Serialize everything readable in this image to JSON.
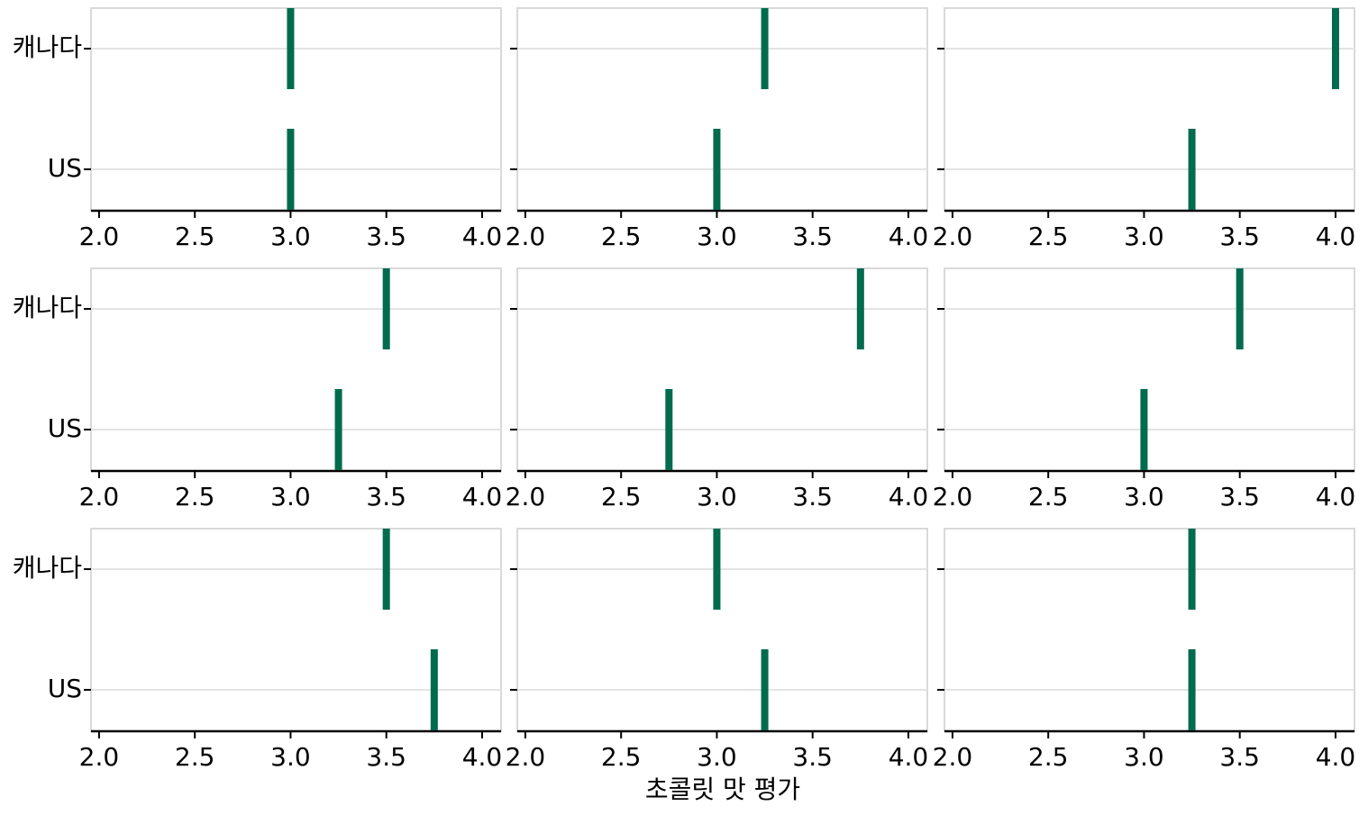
{
  "chart_data": {
    "type": "strip",
    "xlabel": "초콜릿 맛 평가",
    "categories": [
      "캐나다",
      "US"
    ],
    "color": "#006b4f",
    "xlim": [
      1.958,
      4.099
    ],
    "xticks": [
      {
        "value": 2,
        "label": "2.0"
      },
      {
        "value": 2.5,
        "label": "2.5"
      },
      {
        "value": 3,
        "label": "3.0"
      },
      {
        "value": 3.5,
        "label": "3.5"
      },
      {
        "value": 4,
        "label": "4.0"
      }
    ],
    "grid": true,
    "panels": [
      {
        "values": [
          3,
          3
        ]
      },
      {
        "values": [
          3.25,
          3
        ]
      },
      {
        "values": [
          4,
          3.25
        ]
      },
      {
        "values": [
          3.5,
          3.25
        ]
      },
      {
        "values": [
          3.75,
          2.75
        ]
      },
      {
        "values": [
          3.5,
          3
        ]
      },
      {
        "values": [
          3.5,
          3.75
        ]
      },
      {
        "values": [
          3,
          3.25
        ]
      },
      {
        "values": [
          3.25,
          3.25
        ]
      }
    ]
  }
}
